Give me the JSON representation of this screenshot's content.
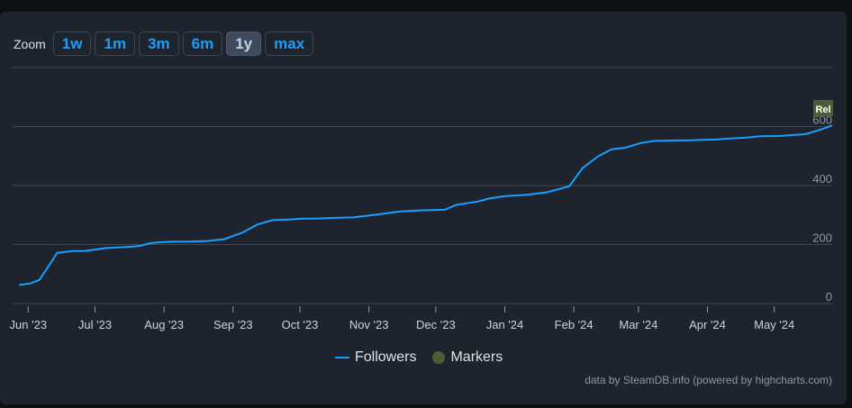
{
  "zoom": {
    "label": "Zoom",
    "buttons": [
      "1w",
      "1m",
      "3m",
      "6m",
      "1y",
      "max"
    ],
    "active": "1y"
  },
  "chart_data": {
    "type": "line",
    "series": [
      {
        "name": "Followers",
        "color": "#1a9fff",
        "x": [
          "2023-05-28",
          "2023-06-02",
          "2023-06-06",
          "2023-06-10",
          "2023-06-14",
          "2023-06-21",
          "2023-06-26",
          "2023-07-01",
          "2023-07-06",
          "2023-07-11",
          "2023-07-16",
          "2023-07-21",
          "2023-07-26",
          "2023-07-31",
          "2023-08-05",
          "2023-08-12",
          "2023-08-20",
          "2023-08-28",
          "2023-09-05",
          "2023-09-12",
          "2023-09-19",
          "2023-09-26",
          "2023-10-02",
          "2023-10-08",
          "2023-10-15",
          "2023-10-25",
          "2023-11-05",
          "2023-11-15",
          "2023-11-25",
          "2023-12-05",
          "2023-12-10",
          "2023-12-20",
          "2023-12-25",
          "2024-01-01",
          "2024-01-10",
          "2024-01-20",
          "2024-01-30",
          "2024-02-05",
          "2024-02-12",
          "2024-02-18",
          "2024-02-24",
          "2024-03-02",
          "2024-03-08",
          "2024-03-13",
          "2024-03-18",
          "2024-03-23",
          "2024-03-30",
          "2024-04-05",
          "2024-04-10",
          "2024-04-18",
          "2024-04-25",
          "2024-05-03",
          "2024-05-09",
          "2024-05-15",
          "2024-05-22",
          "2024-05-27"
        ],
        "y": [
          63,
          68,
          80,
          125,
          172,
          178,
          178,
          183,
          188,
          190,
          192,
          195,
          205,
          208,
          210,
          210,
          212,
          218,
          240,
          268,
          283,
          285,
          288,
          288,
          290,
          292,
          302,
          312,
          316,
          318,
          334,
          346,
          356,
          364,
          368,
          377,
          398,
          460,
          500,
          523,
          528,
          544,
          551,
          552,
          553,
          553,
          555,
          556,
          559,
          562,
          567,
          568,
          571,
          574,
          590,
          604
        ]
      }
    ],
    "x_ticks": [
      {
        "date": "2023-06-01",
        "label": "Jun '23"
      },
      {
        "date": "2023-07-01",
        "label": "Jul '23"
      },
      {
        "date": "2023-08-01",
        "label": "Aug '23"
      },
      {
        "date": "2023-09-01",
        "label": "Sep '23"
      },
      {
        "date": "2023-10-01",
        "label": "Oct '23"
      },
      {
        "date": "2023-11-01",
        "label": "Nov '23"
      },
      {
        "date": "2023-12-01",
        "label": "Dec '23"
      },
      {
        "date": "2024-01-01",
        "label": "Jan '24"
      },
      {
        "date": "2024-02-01",
        "label": "Feb '24"
      },
      {
        "date": "2024-03-01",
        "label": "Mar '24"
      },
      {
        "date": "2024-04-01",
        "label": "Apr '24"
      },
      {
        "date": "2024-05-01",
        "label": "May '24"
      }
    ],
    "x_range": [
      "2023-05-25",
      "2024-05-27"
    ],
    "y_ticks": [
      0,
      200,
      400,
      600
    ],
    "ylim": [
      0,
      800
    ],
    "grid": true,
    "marker": {
      "label": "Rel",
      "color": "#4b5d36",
      "date": "2024-05-27"
    },
    "legend": {
      "position": "bottom-center",
      "items": [
        {
          "label": "Followers",
          "color": "#1a9fff"
        },
        {
          "label": "Markers",
          "color": "#4b5d36"
        }
      ]
    }
  },
  "credit": "data by SteamDB.info (powered by highcharts.com)"
}
